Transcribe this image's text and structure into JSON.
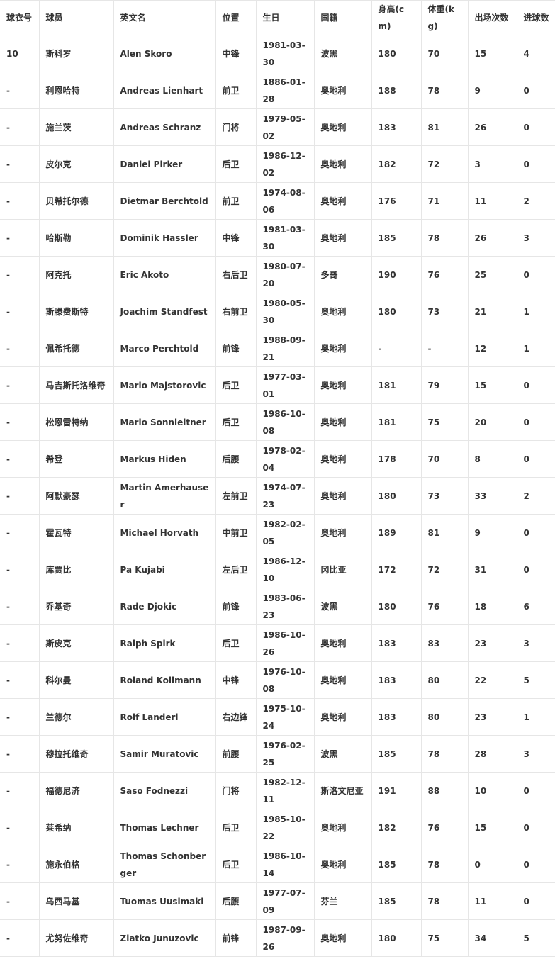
{
  "table": {
    "headers": [
      "球衣号",
      "球员",
      "英文名",
      "位置",
      "生日",
      "国籍",
      "身高(cm)",
      "体重(kg)",
      "出场次数",
      "进球数"
    ],
    "rows": [
      [
        "10",
        "斯科罗",
        "Alen Skoro",
        "中锋",
        "1981-03-30",
        "波黑",
        "180",
        "70",
        "15",
        "4"
      ],
      [
        "-",
        "利恩哈特",
        "Andreas Lienhart",
        "前卫",
        "1886-01-28",
        "奥地利",
        "188",
        "78",
        "9",
        "0"
      ],
      [
        "-",
        "施兰茨",
        "Andreas Schranz",
        "门将",
        "1979-05-02",
        "奥地利",
        "183",
        "81",
        "26",
        "0"
      ],
      [
        "-",
        "皮尔克",
        "Daniel Pirker",
        "后卫",
        "1986-12-02",
        "奥地利",
        "182",
        "72",
        "3",
        "0"
      ],
      [
        "-",
        "贝希托尔德",
        "Dietmar Berchtold",
        "前卫",
        "1974-08-06",
        "奥地利",
        "176",
        "71",
        "11",
        "2"
      ],
      [
        "-",
        "哈斯勒",
        "Dominik Hassler",
        "中锋",
        "1981-03-30",
        "奥地利",
        "185",
        "78",
        "26",
        "3"
      ],
      [
        "-",
        "阿克托",
        "Eric Akoto",
        "右后卫",
        "1980-07-20",
        "多哥",
        "190",
        "76",
        "25",
        "0"
      ],
      [
        "-",
        "斯滕费斯特",
        "Joachim Standfest",
        "右前卫",
        "1980-05-30",
        "奥地利",
        "180",
        "73",
        "21",
        "1"
      ],
      [
        "-",
        "佩希托德",
        "Marco Perchtold",
        "前锋",
        "1988-09-21",
        "奥地利",
        "-",
        "-",
        "12",
        "1"
      ],
      [
        "-",
        "马吉斯托洛维奇",
        "Mario Majstorovic",
        "后卫",
        "1977-03-01",
        "奥地利",
        "181",
        "79",
        "15",
        "0"
      ],
      [
        "-",
        "松恩雷特纳",
        "Mario Sonnleitner",
        "后卫",
        "1986-10-08",
        "奥地利",
        "181",
        "75",
        "20",
        "0"
      ],
      [
        "-",
        "希登",
        "Markus Hiden",
        "后腰",
        "1978-02-04",
        "奥地利",
        "178",
        "70",
        "8",
        "0"
      ],
      [
        "-",
        "阿默豪瑟",
        "Martin Amerhauser",
        "左前卫",
        "1974-07-23",
        "奥地利",
        "180",
        "73",
        "33",
        "2"
      ],
      [
        "-",
        "霍瓦特",
        "Michael Horvath",
        "中前卫",
        "1982-02-05",
        "奥地利",
        "189",
        "81",
        "9",
        "0"
      ],
      [
        "-",
        "库贾比",
        "Pa Kujabi",
        "左后卫",
        "1986-12-10",
        "冈比亚",
        "172",
        "72",
        "31",
        "0"
      ],
      [
        "-",
        "乔基奇",
        "Rade Djokic",
        "前锋",
        "1983-06-23",
        "波黑",
        "180",
        "76",
        "18",
        "6"
      ],
      [
        "-",
        "斯皮克",
        "Ralph Spirk",
        "后卫",
        "1986-10-26",
        "奥地利",
        "183",
        "83",
        "23",
        "3"
      ],
      [
        "-",
        "科尔曼",
        "Roland Kollmann",
        "中锋",
        "1976-10-08",
        "奥地利",
        "183",
        "80",
        "22",
        "5"
      ],
      [
        "-",
        "兰德尔",
        "Rolf Landerl",
        "右边锋",
        "1975-10-24",
        "奥地利",
        "183",
        "80",
        "23",
        "1"
      ],
      [
        "-",
        "穆拉托维奇",
        "Samir Muratovic",
        "前腰",
        "1976-02-25",
        "波黑",
        "185",
        "78",
        "28",
        "3"
      ],
      [
        "-",
        "福德尼济",
        "Saso Fodnezzi",
        "门将",
        "1982-12-11",
        "斯洛文尼亚",
        "191",
        "88",
        "10",
        "0"
      ],
      [
        "-",
        "莱希纳",
        "Thomas Lechner",
        "后卫",
        "1985-10-22",
        "奥地利",
        "182",
        "76",
        "15",
        "0"
      ],
      [
        "-",
        "施永伯格",
        "Thomas Schonberger",
        "后卫",
        "1986-10-14",
        "奥地利",
        "185",
        "78",
        "0",
        "0"
      ],
      [
        "-",
        "乌西马基",
        "Tuomas Uusimaki",
        "后腰",
        "1977-07-09",
        "芬兰",
        "185",
        "78",
        "11",
        "0"
      ],
      [
        "-",
        "尤努佐维奇",
        "Zlatko Junuzovic",
        "前锋",
        "1987-09-26",
        "奥地利",
        "180",
        "75",
        "34",
        "5"
      ]
    ]
  }
}
